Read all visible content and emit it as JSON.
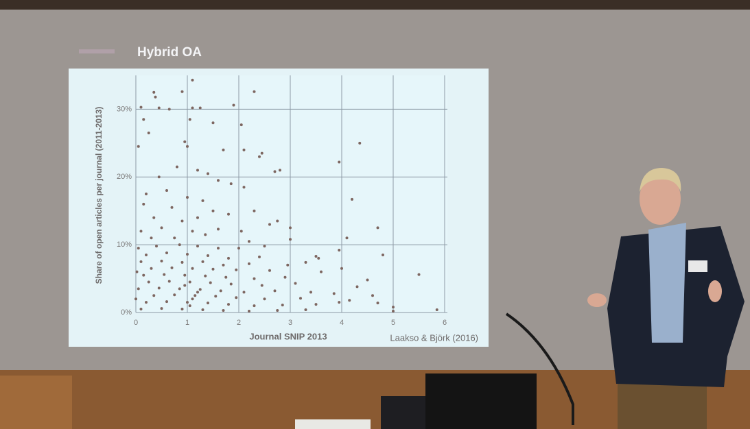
{
  "chart_data": {
    "type": "scatter",
    "title": "Hybrid OA",
    "xlabel": "Journal SNIP 2013",
    "ylabel": "Share of open articles per journal (2011-2013)",
    "annotation": "Laakso & Björk (2016)",
    "color": "#7d6660",
    "grid": true,
    "xlim": [
      0,
      6
    ],
    "xticks": [
      0,
      1,
      2,
      3,
      4,
      5,
      6
    ],
    "ylim": [
      0,
      35
    ],
    "yticks": [
      {
        "value": 0,
        "label": "0%"
      },
      {
        "value": 10,
        "label": "10%"
      },
      {
        "value": 20,
        "label": "20%"
      },
      {
        "value": 30,
        "label": "30%"
      }
    ],
    "x": [
      0.35,
      0.38,
      0.9,
      1.1,
      1.1,
      1.25,
      0.1,
      0.45,
      0.65,
      1.9,
      2.3,
      1.5,
      0.15,
      1.05,
      2.05,
      0.25,
      0.95,
      1.0,
      0.05,
      1.7,
      2.1,
      2.45,
      2.4,
      1.2,
      0.8,
      2.8,
      2.7,
      3.95,
      4.35,
      0.45,
      1.4,
      1.6,
      0.2,
      0.6,
      1.85,
      2.1,
      4.2,
      0.15,
      1.0,
      1.3,
      0.7,
      1.5,
      2.3,
      0.35,
      0.9,
      1.2,
      1.8,
      2.6,
      2.75,
      4.7,
      0.1,
      0.5,
      1.1,
      1.6,
      2.05,
      3.0,
      4.1,
      0.3,
      0.75,
      1.35,
      2.2,
      3.0,
      0.05,
      0.4,
      0.85,
      1.2,
      1.6,
      2.0,
      2.5,
      3.95,
      4.8,
      0.2,
      0.6,
      1.0,
      1.4,
      1.8,
      2.4,
      3.5,
      3.55,
      0.1,
      0.5,
      0.9,
      1.3,
      1.7,
      2.2,
      2.95,
      3.3,
      0.3,
      0.7,
      1.1,
      1.5,
      1.95,
      2.6,
      3.6,
      4.0,
      5.5,
      0.15,
      0.55,
      0.95,
      1.35,
      1.75,
      2.3,
      2.9,
      4.5,
      0.25,
      0.65,
      1.05,
      1.45,
      1.85,
      2.45,
      3.1,
      4.3,
      0.05,
      0.45,
      0.85,
      1.25,
      1.65,
      2.1,
      2.7,
      3.4,
      3.85,
      4.6,
      0.35,
      0.75,
      1.15,
      1.55,
      1.95,
      2.5,
      3.2,
      4.15,
      4.7,
      0.2,
      0.6,
      1.0,
      1.4,
      1.8,
      2.3,
      2.85,
      3.5,
      3.95,
      0.1,
      0.5,
      0.9,
      1.3,
      1.7,
      2.2,
      2.75,
      3.3,
      5.0,
      5.0,
      5.85,
      0.0,
      0.02,
      1.1,
      1.2,
      0.95,
      1.05
    ],
    "values": [
      32.5,
      31.8,
      32.6,
      34.3,
      30.2,
      30.2,
      30.3,
      30.2,
      30.0,
      30.6,
      32.6,
      28.0,
      28.5,
      28.5,
      27.7,
      26.5,
      25.2,
      24.5,
      24.5,
      24.0,
      24.0,
      23.5,
      23.0,
      21.0,
      21.5,
      21.0,
      20.8,
      22.2,
      25.0,
      20.0,
      20.5,
      19.5,
      17.5,
      18.0,
      19.0,
      18.5,
      16.7,
      16.0,
      17.0,
      16.5,
      15.5,
      15.0,
      15.0,
      14.0,
      13.5,
      14.0,
      14.5,
      13.0,
      13.5,
      12.5,
      12.0,
      12.5,
      12.0,
      12.3,
      12.0,
      12.5,
      11.0,
      11.0,
      11.0,
      11.5,
      10.5,
      10.8,
      9.5,
      9.8,
      10.0,
      9.8,
      9.5,
      9.5,
      9.8,
      9.2,
      8.5,
      8.5,
      8.8,
      8.6,
      8.4,
      8.0,
      8.2,
      8.3,
      8.0,
      7.5,
      7.6,
      7.4,
      7.5,
      7.0,
      7.2,
      7.0,
      7.4,
      6.5,
      6.6,
      6.5,
      6.4,
      6.3,
      6.2,
      6.0,
      6.5,
      5.6,
      5.5,
      5.6,
      5.5,
      5.4,
      5.2,
      5.0,
      5.2,
      4.8,
      4.5,
      4.6,
      4.5,
      4.4,
      4.2,
      4.0,
      4.3,
      3.8,
      3.5,
      3.6,
      3.5,
      3.4,
      3.2,
      3.0,
      3.2,
      3.0,
      2.8,
      2.5,
      2.5,
      2.6,
      2.5,
      2.4,
      2.2,
      2.0,
      2.1,
      1.8,
      1.4,
      1.5,
      1.6,
      1.5,
      1.4,
      1.2,
      1.0,
      1.1,
      1.2,
      1.5,
      0.5,
      0.6,
      0.5,
      0.4,
      0.3,
      0.2,
      0.3,
      0.4,
      0.8,
      0.2,
      0.4,
      2.0,
      6.0,
      2.0,
      3.0,
      4.0,
      1.0
    ]
  }
}
